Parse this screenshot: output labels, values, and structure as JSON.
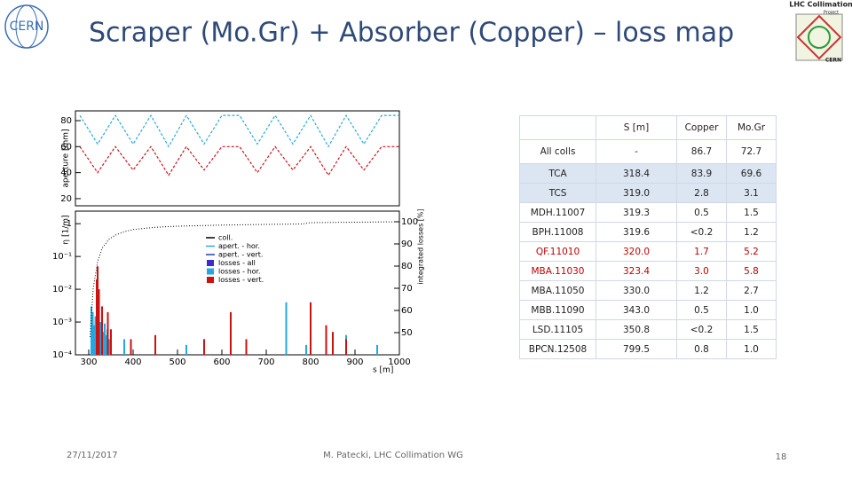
{
  "header": {
    "title": "Scraper (Mo.Gr) + Absorber (Copper) – loss map",
    "logo_left": "CERN",
    "logo_right_top": "LHC Collimation",
    "logo_right_sub": "Project",
    "logo_right_bottom": "CERN"
  },
  "footer": {
    "date": "27/11/2017",
    "author": "M. Patecki, LHC Collimation WG",
    "page": "18"
  },
  "plot": {
    "xlabel": "s [m]",
    "xlim": [
      270,
      1000
    ],
    "xticks": [
      300,
      400,
      500,
      600,
      700,
      800,
      900,
      1000
    ],
    "top": {
      "ylabel": "aperture [mm]",
      "ylim": [
        14.5,
        87.5
      ],
      "yticks": [
        20,
        40,
        60,
        80
      ],
      "x": [
        280,
        320,
        360,
        400,
        440,
        480,
        520,
        560,
        600,
        640,
        680,
        720,
        760,
        800,
        840,
        880,
        920,
        960,
        1000
      ],
      "series": [
        {
          "name": "apert. - hor.",
          "color": "#29a8e0",
          "values": [
            84,
            62,
            84,
            62,
            84,
            60,
            84,
            62,
            84,
            84,
            62,
            84,
            62,
            84,
            60,
            84,
            62,
            84,
            84
          ]
        },
        {
          "name": "apert. - vert.",
          "color": "#c8141e",
          "values": [
            60,
            40,
            60,
            42,
            60,
            38,
            60,
            42,
            60,
            60,
            40,
            60,
            42,
            60,
            38,
            60,
            42,
            60,
            60
          ]
        }
      ]
    },
    "bottom": {
      "ylabel": "η [1/m]",
      "log": true,
      "ylim": [
        0.0001,
        2.42
      ],
      "yticks": [
        {
          "value": 1,
          "label": "1"
        },
        {
          "value": 0.1,
          "label": "10⁻¹"
        },
        {
          "value": 0.01,
          "label": "10⁻²"
        },
        {
          "value": 0.001,
          "label": "10⁻³"
        },
        {
          "value": 0.0001,
          "label": "10⁻⁴"
        }
      ],
      "y2label": "integrated losses [%]",
      "y2lim": [
        40,
        104.8
      ],
      "y2ticks": [
        50,
        60,
        70,
        80,
        90,
        100
      ],
      "legend": [
        {
          "name": "coll.",
          "color": "#000000"
        },
        {
          "name": "apert. - hor.",
          "color": "#29a8e0"
        },
        {
          "name": "apert. - vert.",
          "color": "#1f3fb0"
        },
        {
          "name": "losses - all",
          "color": "#3a2ccc"
        },
        {
          "name": "losses - hor.",
          "color": "#22a8e0"
        },
        {
          "name": "losses - vert.",
          "color": "#cc1111"
        }
      ],
      "losses_hor": {
        "color": "#22a8e0",
        "x": [
          306,
          309,
          312,
          315,
          318,
          321,
          324,
          327,
          330,
          333,
          336,
          339,
          342,
          346,
          380,
          520,
          560,
          745,
          790,
          850,
          880,
          950
        ],
        "values": [
          0.003,
          0.002,
          0.0008,
          0.0015,
          0.003,
          0.0025,
          0.0006,
          0.001,
          0.0012,
          0.0005,
          0.0009,
          0.0004,
          0.0006,
          0.0003,
          0.0003,
          0.0002,
          0.0003,
          0.004,
          0.0002,
          0.0003,
          0.0004,
          0.0002
        ]
      },
      "losses_vert": {
        "color": "#cc1111",
        "x": [
          318,
          320,
          323,
          330,
          343,
          350,
          395,
          450,
          560,
          620,
          655,
          800,
          835,
          850,
          880
        ],
        "values": [
          0.02,
          0.05,
          0.01,
          0.003,
          0.002,
          0.0006,
          0.0003,
          0.0004,
          0.0003,
          0.002,
          0.0003,
          0.004,
          0.0008,
          0.0005,
          0.0003
        ]
      },
      "integrated": {
        "color": "#000000",
        "x": [
          303,
          310,
          320,
          330,
          345,
          360,
          380,
          400,
          450,
          500,
          600,
          700,
          780,
          800,
          900,
          1000
        ],
        "values": [
          48,
          70,
          82,
          88,
          92,
          94,
          95.5,
          96.5,
          97.5,
          98,
          98.5,
          98.8,
          99,
          99.6,
          99.8,
          100
        ]
      }
    }
  },
  "table": {
    "header": [
      "",
      "S [m]",
      "Copper",
      "Mo.Gr"
    ],
    "rows": [
      [
        "All colls",
        "-",
        "86.7",
        "72.7"
      ],
      [
        "TCA",
        "318.4",
        "83.9",
        "69.6"
      ],
      [
        "TCS",
        "319.0",
        "2.8",
        "3.1"
      ],
      [
        "MDH.11007",
        "319.3",
        "0.5",
        "1.5"
      ],
      [
        "BPH.11008",
        "319.6",
        "<0.2",
        "1.2"
      ],
      [
        "QF.11010",
        "320.0",
        "1.7",
        "5.2"
      ],
      [
        "MBA.11030",
        "323.4",
        "3.0",
        "5.8"
      ],
      [
        "MBA.11050",
        "330.0",
        "1.2",
        "2.7"
      ],
      [
        "MBB.11090",
        "343.0",
        "0.5",
        "1.0"
      ],
      [
        "LSD.11105",
        "350.8",
        "<0.2",
        "1.5"
      ],
      [
        "BPCN.12508",
        "799.5",
        "0.8",
        "1.0"
      ]
    ]
  }
}
